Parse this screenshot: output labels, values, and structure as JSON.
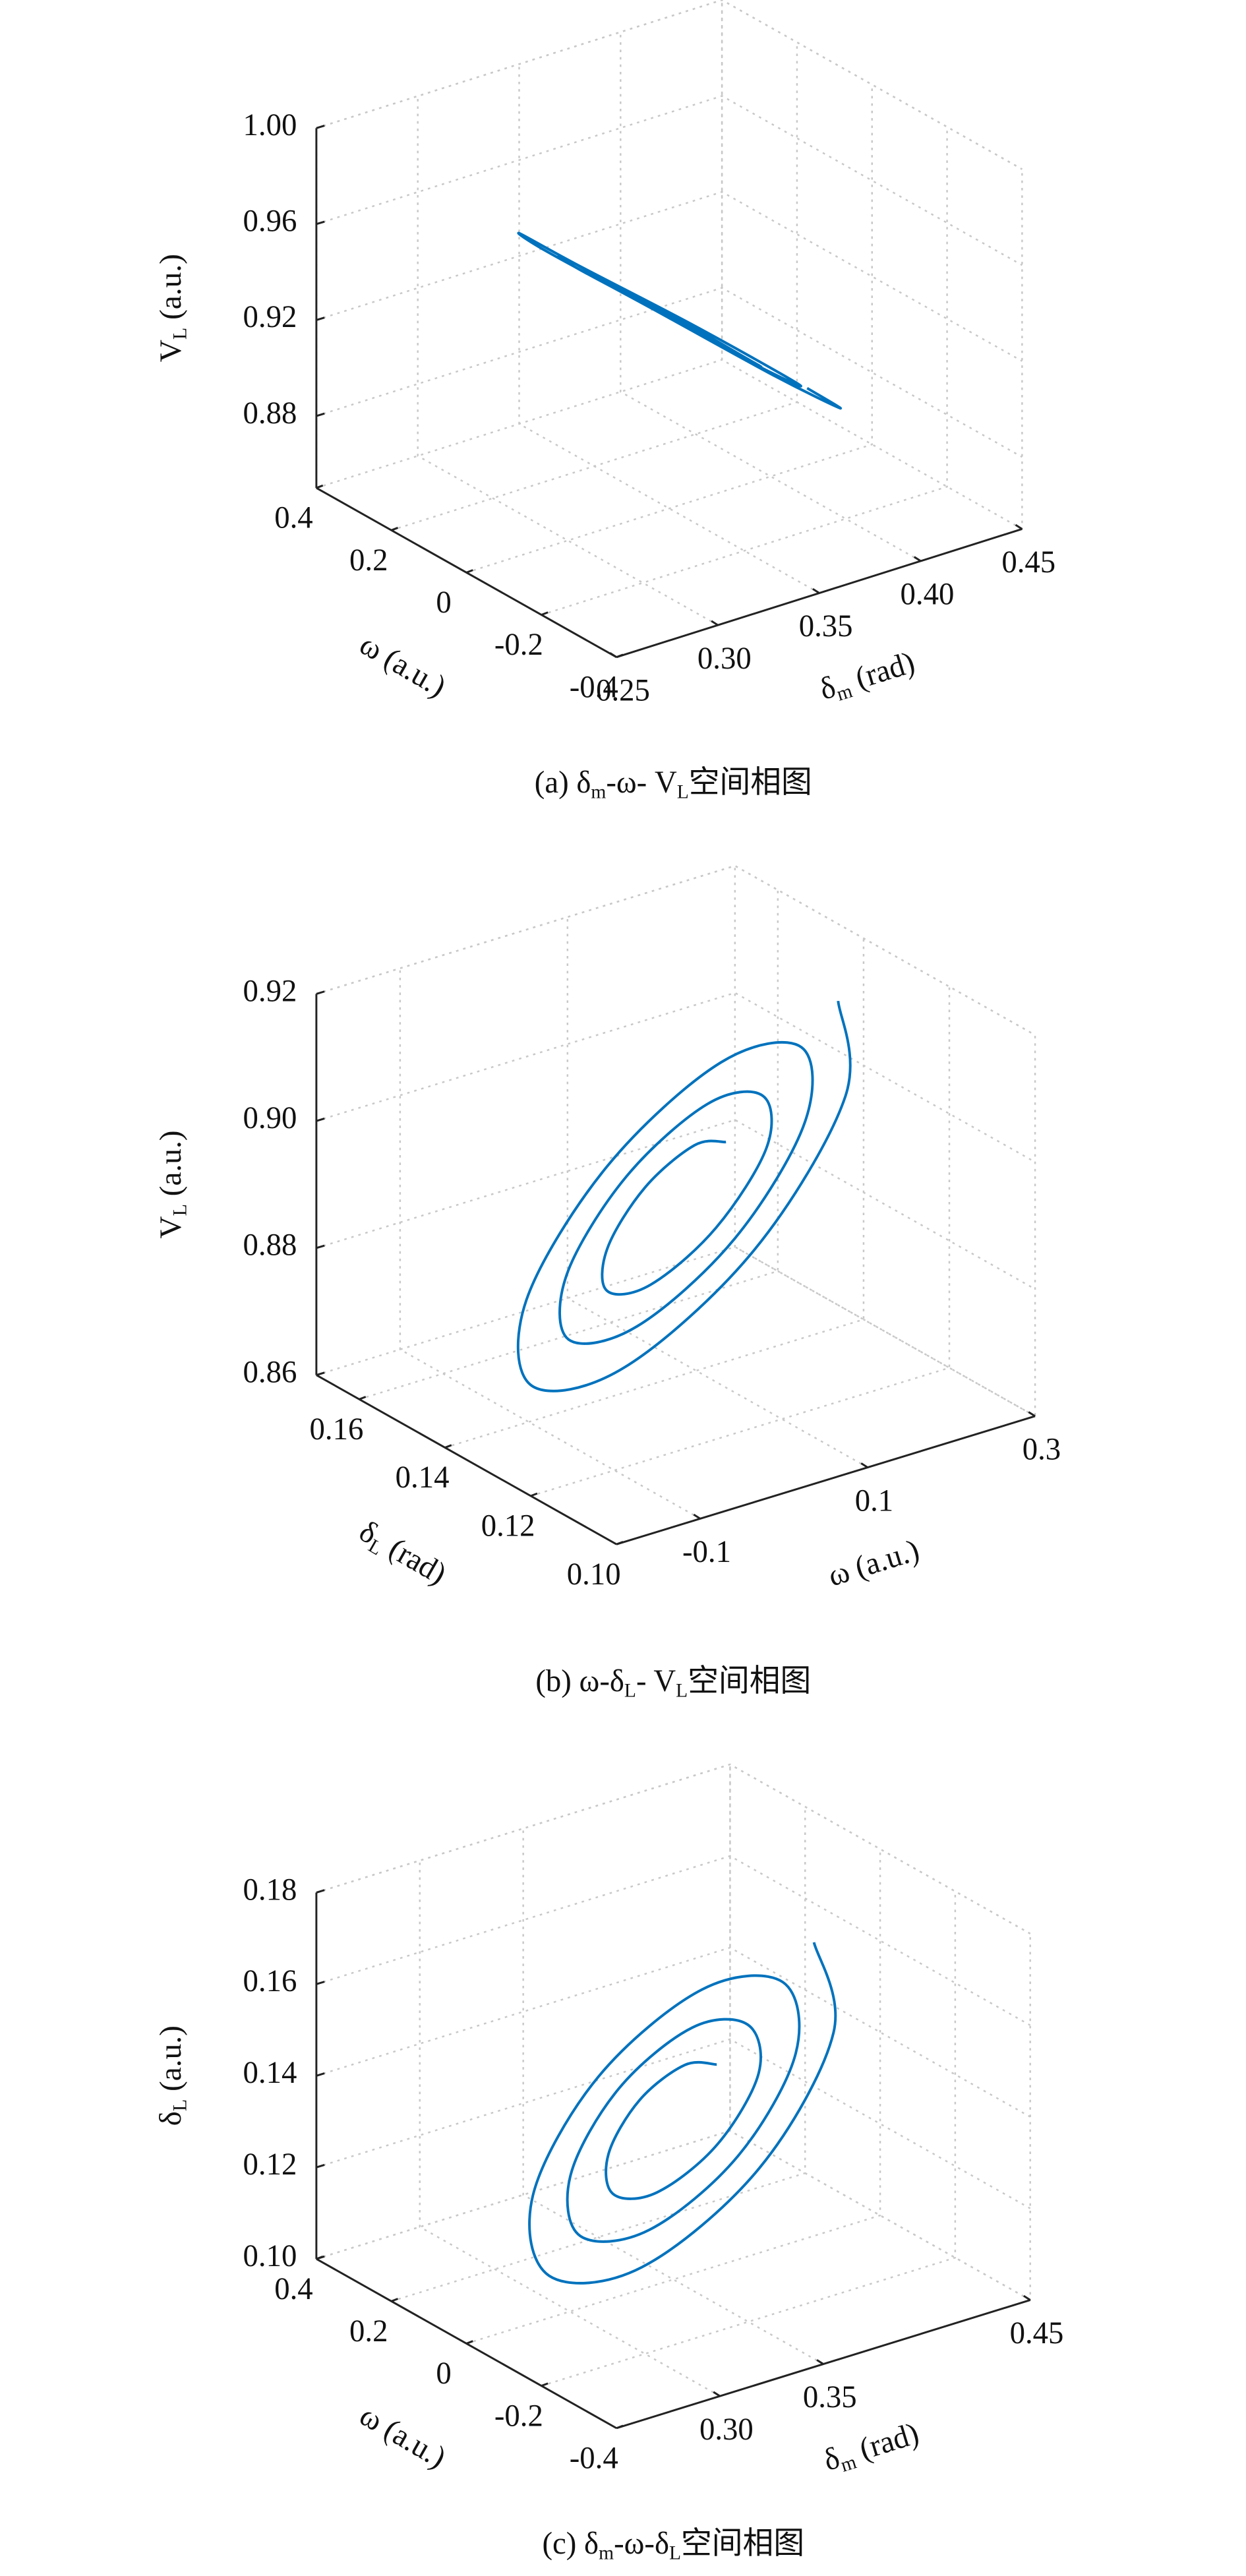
{
  "chart_data": [
    {
      "type": "line3d",
      "caption": [
        "(a) δ",
        "m",
        "-ω- V",
        "L",
        "空间相图"
      ],
      "xlabel": [
        "δ",
        "m",
        " (rad)"
      ],
      "ylabel": [
        "ω (a.u.)"
      ],
      "zlabel": [
        "V",
        "L",
        " (a.u.)"
      ],
      "xlim": [
        0.25,
        0.45
      ],
      "xticks": [
        0.25,
        {
          "value": 0.3,
          "label": "0.30"
        },
        0.35,
        {
          "value": 0.4,
          "label": "0.40"
        },
        0.45
      ],
      "ylim": [
        -0.4,
        0.4
      ],
      "yticks": [
        0.4,
        0.2,
        0,
        -0.2,
        -0.4
      ],
      "zlim": [
        0.85,
        1.0
      ],
      "zticks": [
        {
          "value": 1.0,
          "label": "1.00"
        },
        0.96,
        0.92,
        0.88
      ],
      "grid": true,
      "series": [
        {
          "color": "#0072bd",
          "x": [
            0.371,
            0.366,
            0.35,
            0.331,
            0.321,
            0.328,
            0.35,
            0.375,
            0.386,
            0.377,
            0.35,
            0.32,
            0.305,
            0.317,
            0.35,
            0.386,
            0.403,
            0.389,
            0.35,
            0.309,
            0.29,
            0.306,
            0.35,
            0.397,
            0.418
          ],
          "y": [
            0,
            0.069,
            0.108,
            0.081,
            0,
            -0.093,
            -0.141,
            -0.108,
            0,
            0.117,
            0.174,
            0.129,
            0,
            -0.141,
            -0.207,
            -0.153,
            0,
            0.165,
            0.24,
            0.177,
            0,
            -0.189,
            -0.276,
            -0.201,
            0
          ],
          "z": [
            0.915,
            0.919,
            0.93,
            0.944,
            0.951,
            0.946,
            0.93,
            0.912,
            0.904,
            0.911,
            0.93,
            0.952,
            0.962,
            0.954,
            0.93,
            0.905,
            0.893,
            0.903,
            0.93,
            0.96,
            0.973,
            0.962,
            0.93,
            0.897,
            0.882
          ]
        }
      ]
    },
    {
      "type": "line3d",
      "caption": [
        "(b) ω-δ",
        "L",
        "- V",
        "L",
        "空间相图"
      ],
      "xlabel": [
        "ω (a.u.)"
      ],
      "ylabel": [
        "δ",
        "L",
        " (rad)"
      ],
      "zlabel": [
        "V",
        "L",
        " (a.u.)"
      ],
      "xlim": [
        -0.2,
        0.3
      ],
      "xticks": [
        -0.1,
        0.1,
        0.3
      ],
      "ylim": [
        0.1,
        0.17
      ],
      "yticks": [
        0.16,
        0.14,
        0.12,
        {
          "value": 0.1,
          "label": "0.10"
        }
      ],
      "zlim": [
        0.86,
        0.92
      ],
      "zticks": [
        0.92,
        {
          "value": 0.9,
          "label": "0.90"
        },
        0.88,
        0.86
      ],
      "grid": true,
      "series": [
        {
          "color": "#0072bd",
          "x": [
            0.11,
            0.096,
            0.05,
            -0.004,
            -0.032,
            -0.012,
            0.05,
            0.122,
            0.154,
            0.128,
            0.05,
            -0.036,
            -0.078,
            -0.044,
            0.05,
            0.152,
            0.2,
            0.16,
            0.05,
            -0.068,
            -0.122,
            -0.076,
            0.05,
            0.184,
            0.244
          ],
          "y": [
            0.135,
            0.1396,
            0.1422,
            0.1404,
            0.135,
            0.1288,
            0.1256,
            0.1278,
            0.135,
            0.1428,
            0.1466,
            0.1436,
            0.135,
            0.1256,
            0.1212,
            0.1248,
            0.135,
            0.146,
            0.151,
            0.1468,
            0.135,
            0.1224,
            0.1166,
            0.1216,
            0.135
          ],
          "z": [
            0.8975,
            0.8958,
            0.89,
            0.8833,
            0.8798,
            0.8823,
            0.89,
            0.899,
            0.903,
            0.8998,
            0.89,
            0.8793,
            0.874,
            0.8783,
            0.89,
            0.9028,
            0.9088,
            0.9038,
            0.89,
            0.8753,
            0.8685,
            0.8743,
            0.89,
            0.9068,
            0.9143
          ]
        }
      ]
    },
    {
      "type": "line3d",
      "caption": [
        "(c) δ",
        "m",
        "-ω-δ",
        "L",
        "空间相图"
      ],
      "xlabel": [
        "δ",
        "m",
        " (rad)"
      ],
      "ylabel": [
        "ω (a.u.)"
      ],
      "zlabel": [
        "δ",
        "L",
        " (a.u.)"
      ],
      "xlim": [
        0.25,
        0.45
      ],
      "xticks": [
        {
          "value": 0.3,
          "label": "0.30"
        },
        0.35,
        0.45
      ],
      "ylim": [
        -0.4,
        0.4
      ],
      "yticks": [
        0.4,
        0.2,
        0,
        -0.2,
        -0.4
      ],
      "zlim": [
        0.1,
        0.18
      ],
      "zticks": [
        0.18,
        0.16,
        0.14,
        0.12,
        {
          "value": 0.1,
          "label": "0.10"
        }
      ],
      "grid": true,
      "series": [
        {
          "color": "#0072bd",
          "x": [
            0.371,
            0.366,
            0.35,
            0.331,
            0.321,
            0.328,
            0.35,
            0.375,
            0.386,
            0.377,
            0.35,
            0.32,
            0.305,
            0.317,
            0.35,
            0.386,
            0.403,
            0.389,
            0.35,
            0.309,
            0.29,
            0.306,
            0.35,
            0.397,
            0.418
          ],
          "y": [
            0,
            0.058,
            0.09,
            0.068,
            0,
            -0.078,
            -0.118,
            -0.09,
            0,
            0.098,
            0.145,
            0.108,
            0,
            -0.118,
            -0.173,
            -0.128,
            0,
            0.138,
            0.2,
            0.148,
            0,
            -0.158,
            -0.23,
            -0.168,
            0
          ],
          "z": [
            0.144,
            0.1419,
            0.135,
            0.1269,
            0.1227,
            0.1257,
            0.135,
            0.1458,
            0.1506,
            0.1467,
            0.135,
            0.1221,
            0.1158,
            0.1209,
            0.135,
            0.1503,
            0.1575,
            0.1515,
            0.135,
            0.1173,
            0.1092,
            0.1161,
            0.135,
            0.1551,
            0.1641
          ]
        }
      ]
    }
  ]
}
